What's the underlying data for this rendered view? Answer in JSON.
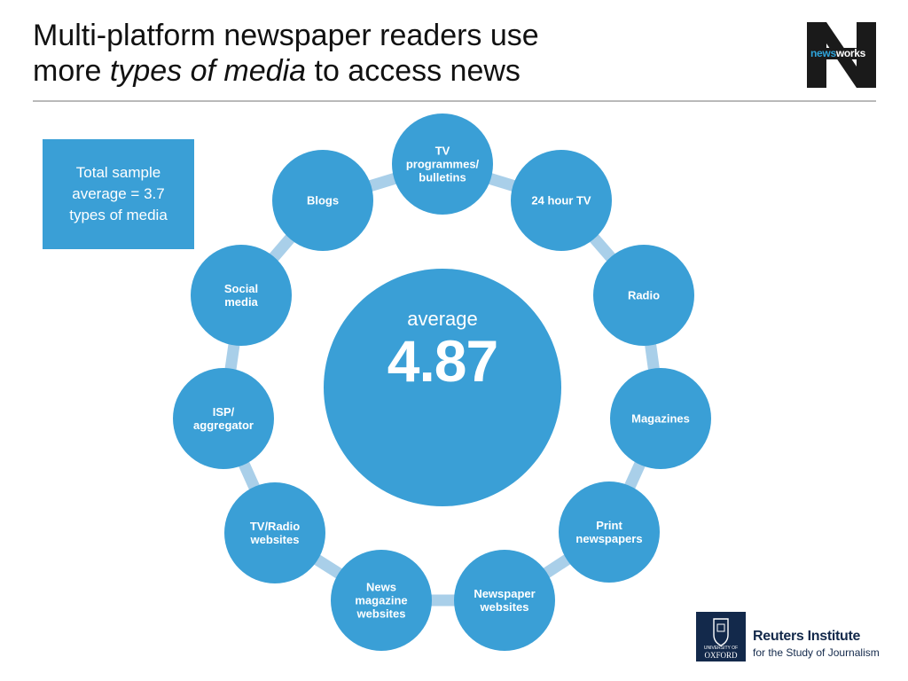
{
  "title": {
    "line1": "Multi-platform newspaper readers use",
    "line2_prefix": "more ",
    "line2_emphasis": "types of media",
    "line2_suffix": " to access news"
  },
  "sample_box": {
    "text": "Total sample average = 3.7 types of media"
  },
  "center": {
    "label": "average",
    "value": "4.87"
  },
  "media_types": [
    {
      "id": "tv",
      "label": [
        "TV",
        "programmes/",
        "bulletins"
      ]
    },
    {
      "id": "24tv",
      "label": [
        "24 hour TV"
      ]
    },
    {
      "id": "radio",
      "label": [
        "Radio"
      ]
    },
    {
      "id": "magazines",
      "label": [
        "Magazines"
      ]
    },
    {
      "id": "print",
      "label": [
        "Print",
        "newspapers"
      ]
    },
    {
      "id": "newspaper-web",
      "label": [
        "Newspaper",
        "websites"
      ]
    },
    {
      "id": "news-mag-web",
      "label": [
        "News",
        "magazine",
        "websites"
      ]
    },
    {
      "id": "tvradio-web",
      "label": [
        "TV/Radio",
        "websites"
      ]
    },
    {
      "id": "isp",
      "label": [
        "ISP/",
        "aggregator"
      ]
    },
    {
      "id": "social",
      "label": [
        "Social",
        "media"
      ]
    },
    {
      "id": "blogs",
      "label": [
        "Blogs"
      ]
    }
  ],
  "logos": {
    "newsworks_prefix": "news",
    "newsworks_suffix": "works",
    "oxford_univ": "UNIVERSITY OF",
    "oxford_name": "OXFORD",
    "reuters_name": "Reuters Institute",
    "reuters_sub": "for the Study of Journalism"
  },
  "colors": {
    "circle": "#3a9fd6",
    "connector": "#a9cfe9",
    "title_text": "#111111",
    "oxford_navy": "#13294b"
  }
}
